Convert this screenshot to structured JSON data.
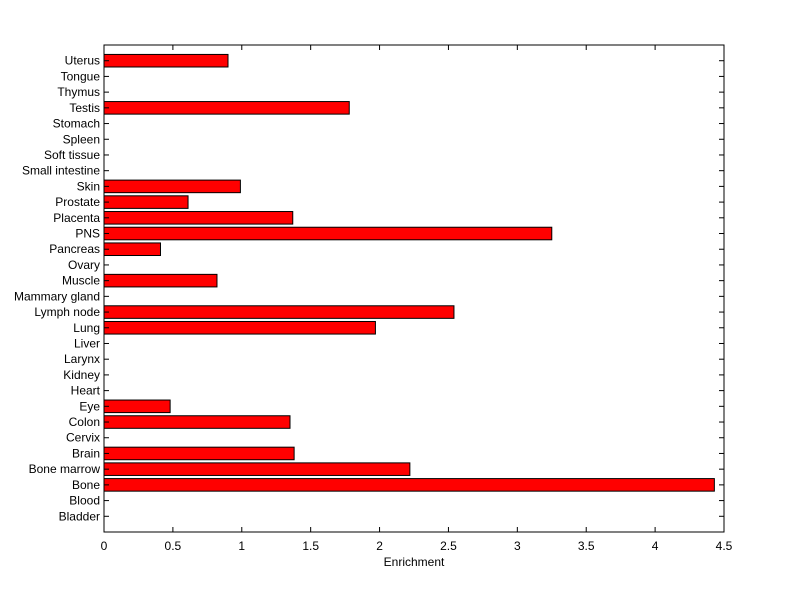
{
  "chart_data": {
    "type": "bar",
    "orientation": "horizontal",
    "title": "",
    "xlabel": "Enrichment",
    "ylabel": "",
    "xlim": [
      0,
      4.5
    ],
    "xticks": [
      0,
      0.5,
      1,
      1.5,
      2,
      2.5,
      3,
      3.5,
      4,
      4.5
    ],
    "xtick_labels": [
      "0",
      "0.5",
      "1",
      "1.5",
      "2",
      "2.5",
      "3",
      "3.5",
      "4",
      "4.5"
    ],
    "grid": false,
    "legend": "none",
    "bar_color": "#ff0000",
    "edge_color": "#000000",
    "categories": [
      "Bladder",
      "Blood",
      "Bone",
      "Bone marrow",
      "Brain",
      "Cervix",
      "Colon",
      "Eye",
      "Heart",
      "Kidney",
      "Larynx",
      "Liver",
      "Lung",
      "Lymph node",
      "Mammary gland",
      "Muscle",
      "Ovary",
      "Pancreas",
      "PNS",
      "Placenta",
      "Prostate",
      "Skin",
      "Small intestine",
      "Soft tissue",
      "Spleen",
      "Stomach",
      "Testis",
      "Thymus",
      "Tongue",
      "Uterus"
    ],
    "values": [
      0,
      0,
      4.43,
      2.22,
      1.38,
      0,
      1.35,
      0.48,
      0,
      0,
      0,
      0,
      1.97,
      2.54,
      0,
      0.82,
      0,
      0.41,
      3.25,
      1.37,
      0.61,
      0.99,
      0,
      0,
      0,
      0,
      1.78,
      0,
      0,
      0.9
    ]
  }
}
